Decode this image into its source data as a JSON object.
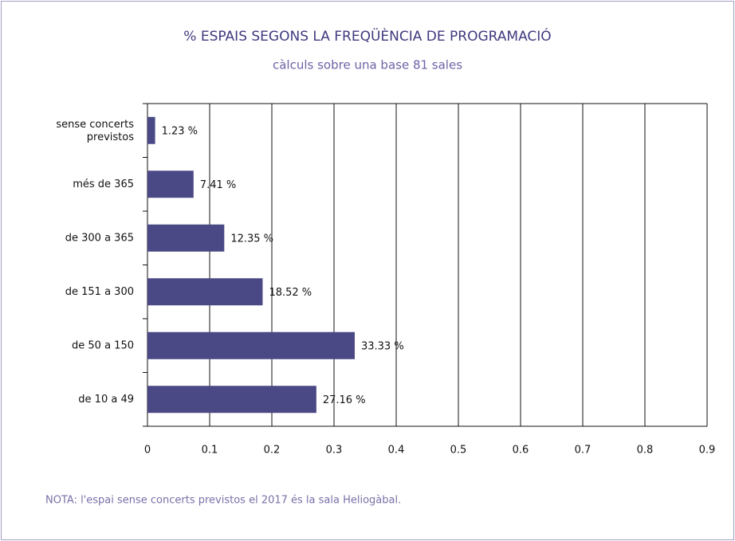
{
  "chart_data": {
    "type": "bar",
    "orientation": "horizontal",
    "title": "% ESPAIS SEGONS LA FREQÜÈNCIA DE PROGRAMACIÓ",
    "subtitle": "càlculs sobre una base 81 sales",
    "categories": [
      "sense concerts\nprevistos",
      "més de 365",
      "de 300 a 365",
      "de 151 a 300",
      "de 50 a 150",
      "de 10 a 49"
    ],
    "values": [
      0.0123,
      0.0741,
      0.1235,
      0.1852,
      0.3333,
      0.2716
    ],
    "value_labels": [
      "1.23 %",
      "7.41 %",
      "12.35 %",
      "18.52 %",
      "33.33 %",
      "27.16 %"
    ],
    "color": "#4b4886",
    "xlim": [
      0,
      0.9
    ],
    "xticks": [
      0,
      0.1,
      0.2,
      0.3,
      0.4,
      0.5,
      0.6,
      0.7,
      0.8,
      0.9
    ],
    "grid": true,
    "note": "NOTA: l'espai sense concerts previstos el 2017 és la sala Heliogàbal."
  }
}
